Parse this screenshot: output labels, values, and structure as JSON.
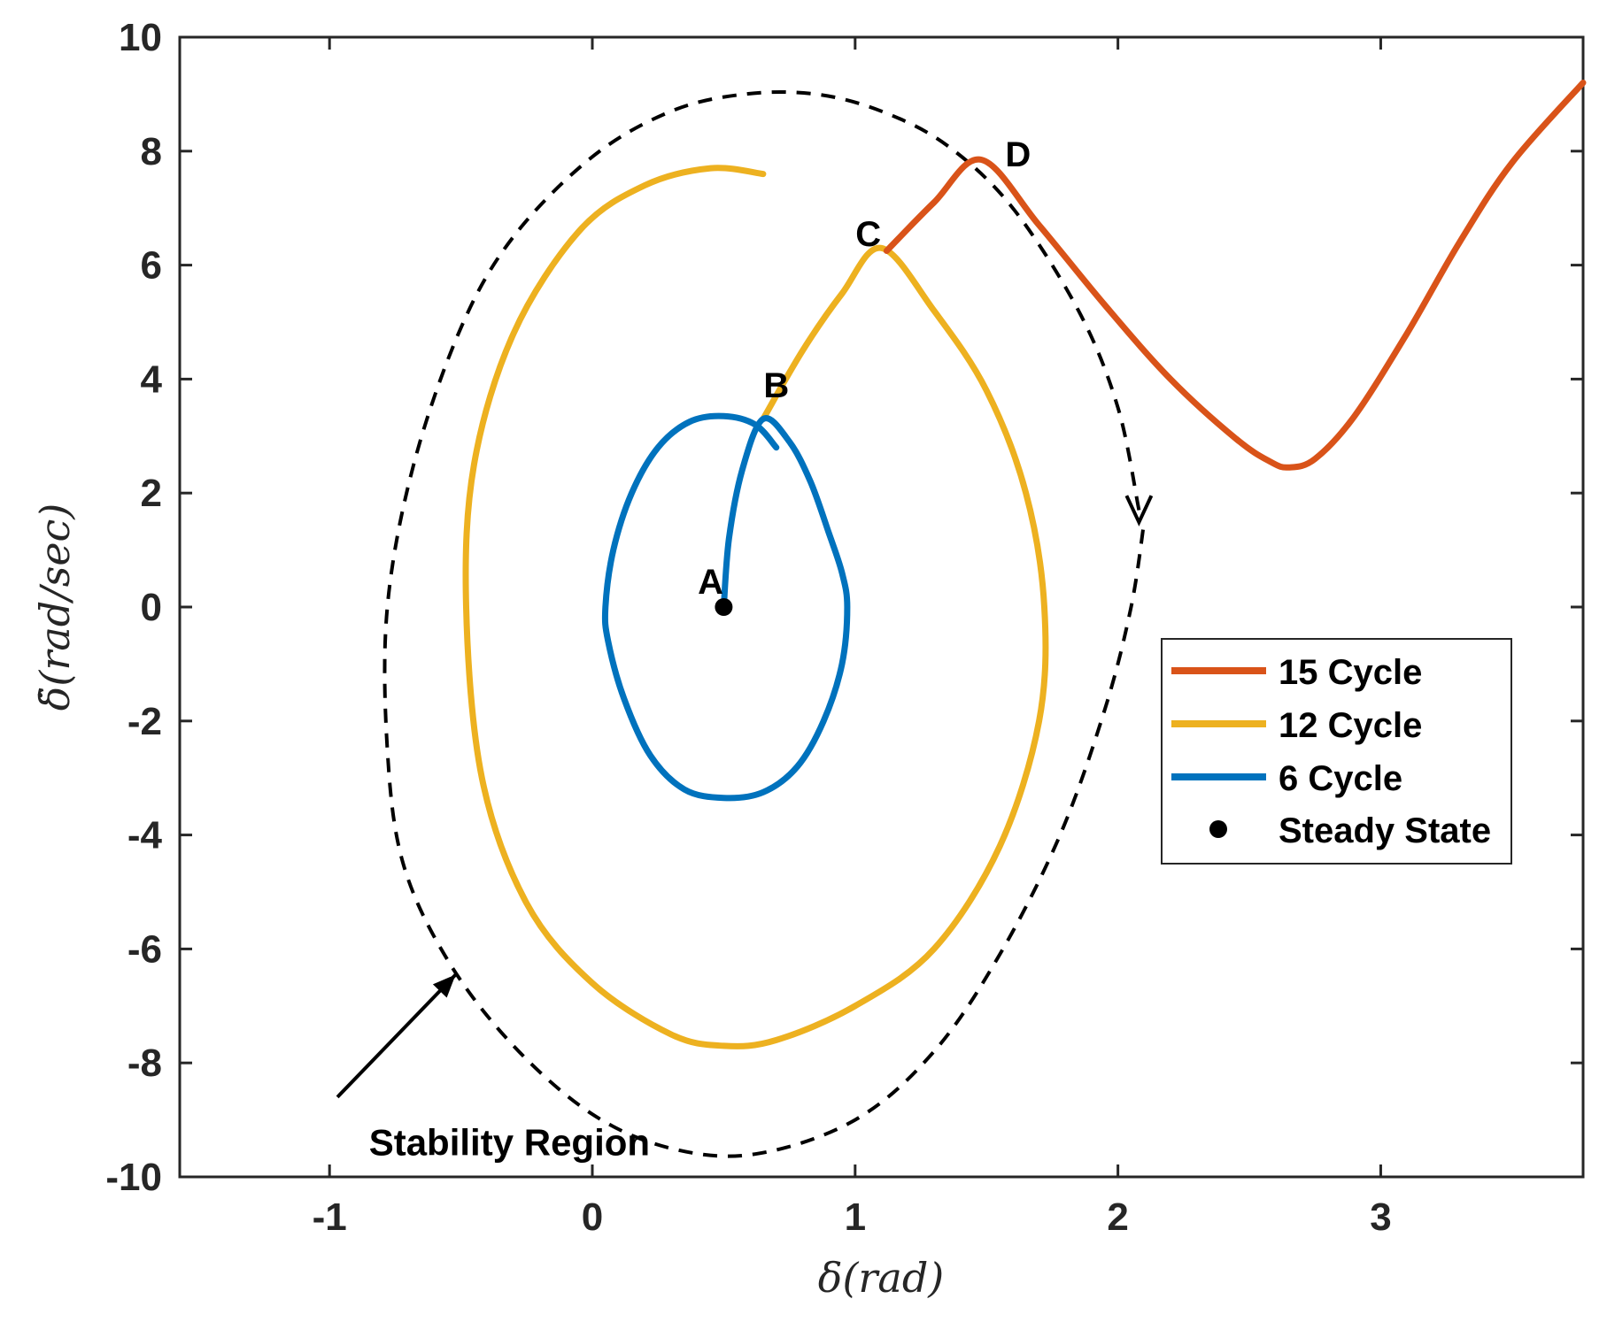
{
  "chart_data": {
    "type": "line",
    "title": "",
    "xlabel": "δ(rad)",
    "ylabel": "δ̇(rad/sec)",
    "xlim": [
      -1.57,
      3.77
    ],
    "ylim": [
      -10,
      10
    ],
    "xticks": [
      -1,
      0,
      1,
      2,
      3
    ],
    "yticks": [
      10,
      8,
      6,
      4,
      2,
      0,
      -2,
      -4,
      -6,
      -8,
      -10
    ],
    "grid": false,
    "legend_position": "middle-right",
    "colors": {
      "cycle15": "#D95319",
      "cycle12": "#EDB120",
      "cycle6": "#0072BD",
      "steady": "#000000",
      "boundary": "#000000"
    },
    "series": [
      {
        "name": "15 Cycle",
        "x": [
          1.12,
          1.3,
          1.48,
          1.7,
          1.95,
          2.2,
          2.45,
          2.58,
          2.65,
          2.75,
          2.9,
          3.1,
          3.3,
          3.5,
          3.77
        ],
        "y": [
          6.25,
          7.1,
          7.85,
          6.7,
          5.3,
          4.0,
          2.95,
          2.55,
          2.45,
          2.6,
          3.35,
          4.8,
          6.4,
          7.8,
          9.2
        ]
      },
      {
        "name": "12 Cycle",
        "x": [
          0.65,
          0.8,
          0.95,
          1.1,
          1.3,
          1.5,
          1.65,
          1.72,
          1.7,
          1.55,
          1.3,
          1.0,
          0.7,
          0.5,
          0.3,
          0.0,
          -0.25,
          -0.42,
          -0.48,
          -0.45,
          -0.3,
          -0.05,
          0.2,
          0.45,
          0.65
        ],
        "y": [
          3.3,
          4.5,
          5.5,
          6.3,
          5.2,
          3.8,
          2.0,
          0.0,
          -2.0,
          -4.2,
          -6.0,
          -7.0,
          -7.6,
          -7.7,
          -7.5,
          -6.6,
          -5.2,
          -3.0,
          0.0,
          2.5,
          4.8,
          6.6,
          7.4,
          7.7,
          7.6
        ]
      },
      {
        "name": "6 Cycle",
        "x": [
          0.5,
          0.52,
          0.57,
          0.65,
          0.75,
          0.83,
          0.9,
          0.95,
          0.97,
          0.95,
          0.88,
          0.78,
          0.65,
          0.5,
          0.35,
          0.22,
          0.12,
          0.06,
          0.05,
          0.08,
          0.15,
          0.25,
          0.37,
          0.5,
          0.62,
          0.7
        ],
        "y": [
          0.0,
          1.2,
          2.4,
          3.3,
          2.9,
          2.2,
          1.3,
          0.6,
          0.0,
          -1.0,
          -2.0,
          -2.8,
          -3.25,
          -3.35,
          -3.2,
          -2.6,
          -1.6,
          -0.6,
          0.0,
          1.0,
          2.0,
          2.8,
          3.25,
          3.35,
          3.2,
          2.8
        ]
      },
      {
        "name": "Steady State",
        "x": [
          0.5
        ],
        "y": [
          0.0
        ]
      },
      {
        "name": "Stability Region",
        "x": [
          2.08,
          2.0,
          1.85,
          1.6,
          1.35,
          1.1,
          0.85,
          0.58,
          0.3,
          0.0,
          -0.3,
          -0.5,
          -0.68,
          -0.78,
          -0.78,
          -0.72,
          -0.55,
          -0.3,
          0.0,
          0.3,
          0.62,
          1.0,
          1.3,
          1.55,
          1.78,
          1.95,
          2.05,
          2.1
        ],
        "y": [
          1.7,
          3.5,
          5.2,
          7.0,
          8.1,
          8.7,
          9.0,
          9.0,
          8.7,
          7.9,
          6.5,
          4.9,
          2.5,
          0.0,
          -2.5,
          -4.5,
          -6.2,
          -7.7,
          -8.9,
          -9.5,
          -9.6,
          -9.0,
          -7.8,
          -6.1,
          -4.0,
          -1.8,
          0.0,
          1.5
        ]
      }
    ],
    "point_labels": [
      {
        "text": "A",
        "x": 0.45,
        "y": 0.45
      },
      {
        "text": "B",
        "x": 0.7,
        "y": 3.9
      },
      {
        "text": "C",
        "x": 1.05,
        "y": 6.55
      },
      {
        "text": "D",
        "x": 1.62,
        "y": 7.95
      }
    ],
    "annotations": [
      {
        "text": "Stability Region",
        "x": -0.85,
        "y": -9.4,
        "arrow_to": [
          -0.52,
          -6.45
        ]
      }
    ]
  }
}
